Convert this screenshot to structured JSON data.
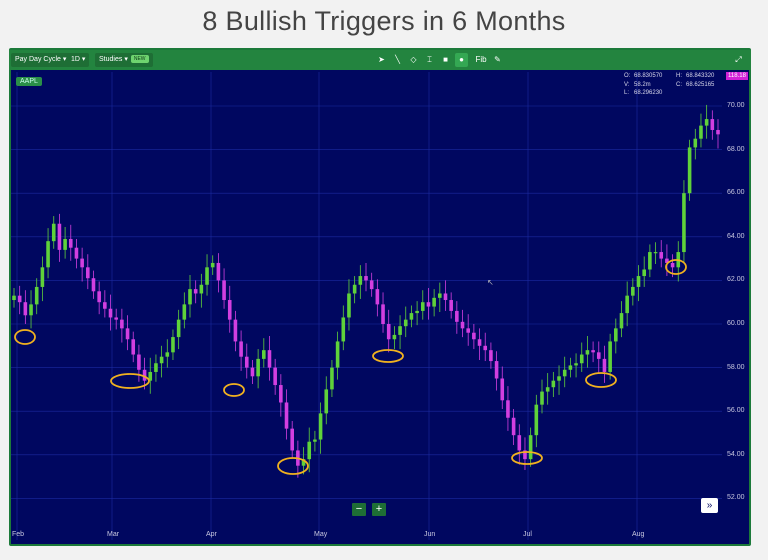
{
  "slide_title": "8 Bullish Triggers in 6 Months",
  "toolbar": {
    "cycle_label": "Pay Day Cycle",
    "interval_label": "1D",
    "studies_label": "Studies",
    "new_badge": "NEW",
    "fib_label": "Fib",
    "tools": [
      "cursor-icon",
      "line-icon",
      "node-icon",
      "text-cursor-icon",
      "square-icon",
      "dot-icon"
    ]
  },
  "symbol": "AAPL",
  "ohlc": {
    "open_label": "O:",
    "open": "68.830570",
    "high_label": "H:",
    "high": "68.843320",
    "volume_label": "V:",
    "volume": "58.2m",
    "close_label": "C:",
    "close": "68.625165",
    "low_label": "L:",
    "low": "68.296230"
  },
  "price_tag": "118.18",
  "x_axis": [
    "Feb",
    "Mar",
    "Apr",
    "May",
    "Jun",
    "Jul",
    "Aug"
  ],
  "y_axis": [
    "70.00",
    "68.00",
    "66.00",
    "64.00",
    "62.00",
    "60.00",
    "58.00",
    "56.00",
    "54.00",
    "52.00"
  ],
  "zoom": {
    "minus": "−",
    "plus": "+"
  },
  "forward_button": "»",
  "colors": {
    "up": "#5fd23a",
    "down": "#d23fe0",
    "background": "#000760",
    "marker": "#f1b21f",
    "grid": "#1b2aa0"
  },
  "chart_data": {
    "type": "candlestick",
    "title": "8 Bullish Triggers in 6 Months",
    "symbol": "AAPL",
    "ylim": [
      51,
      71
    ],
    "closes": [
      61.3,
      61.0,
      60.4,
      60.9,
      61.7,
      62.6,
      63.8,
      64.6,
      63.4,
      63.9,
      63.5,
      63.0,
      62.6,
      62.1,
      61.5,
      61.0,
      60.7,
      60.3,
      60.2,
      59.8,
      59.3,
      58.6,
      57.9,
      57.4,
      57.8,
      58.2,
      58.5,
      58.7,
      59.4,
      60.2,
      60.9,
      61.6,
      61.4,
      61.8,
      62.6,
      62.8,
      62.0,
      61.1,
      60.2,
      59.2,
      58.5,
      58.0,
      57.6,
      58.4,
      58.8,
      58.0,
      57.2,
      56.4,
      55.2,
      54.2,
      53.5,
      53.8,
      54.6,
      54.7,
      55.9,
      57.0,
      58.0,
      59.2,
      60.3,
      61.4,
      61.8,
      62.2,
      62.0,
      61.6,
      60.9,
      60.0,
      59.3,
      59.5,
      59.9,
      60.2,
      60.5,
      60.6,
      61.0,
      60.8,
      61.2,
      61.4,
      61.1,
      60.6,
      60.1,
      59.8,
      59.6,
      59.3,
      59.0,
      58.8,
      58.3,
      57.5,
      56.5,
      55.7,
      54.9,
      54.2,
      53.8,
      54.9,
      56.3,
      56.9,
      57.1,
      57.4,
      57.6,
      57.9,
      58.1,
      58.2,
      58.6,
      58.8,
      58.7,
      58.4,
      57.8,
      59.2,
      59.8,
      60.5,
      61.3,
      61.7,
      62.2,
      62.5,
      63.3,
      63.3,
      63.0,
      62.8,
      62.6,
      63.3,
      66.0,
      68.1,
      68.5,
      69.1,
      69.4,
      68.9,
      68.7
    ]
  },
  "triggers_count": 8
}
